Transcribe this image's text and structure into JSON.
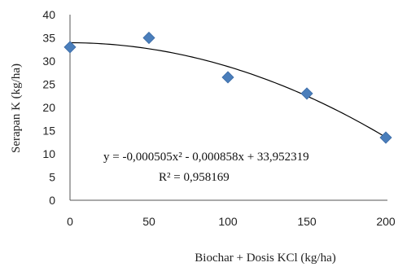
{
  "chart_data": {
    "type": "scatter",
    "xlabel": "Biochar + Dosis KCl (kg/ha)",
    "ylabel": "Serapan K (kg/ha)",
    "x_ticks": [
      "0",
      "50",
      "100",
      "150",
      "200"
    ],
    "y_ticks": [
      "0",
      "5",
      "10",
      "15",
      "20",
      "25",
      "30",
      "35",
      "40"
    ],
    "xlim": [
      0,
      200
    ],
    "ylim": [
      0,
      40
    ],
    "grid": false,
    "legend": "none",
    "series": [
      {
        "marker": "diamond",
        "color": "#4a7ebb",
        "points": [
          {
            "x": 0,
            "y": 33.0
          },
          {
            "x": 50,
            "y": 35.0
          },
          {
            "x": 100,
            "y": 26.5
          },
          {
            "x": 150,
            "y": 23.0
          },
          {
            "x": 200,
            "y": 13.5
          }
        ]
      }
    ],
    "trendline": {
      "type": "polynomial",
      "a": -0.000505,
      "b": -0.000858,
      "c": 33.952319,
      "color": "#000000"
    },
    "annotations": {
      "equation": "y = -0,000505x² - 0,000858x + 33,952319",
      "r2": "R² = 0,958169"
    }
  }
}
